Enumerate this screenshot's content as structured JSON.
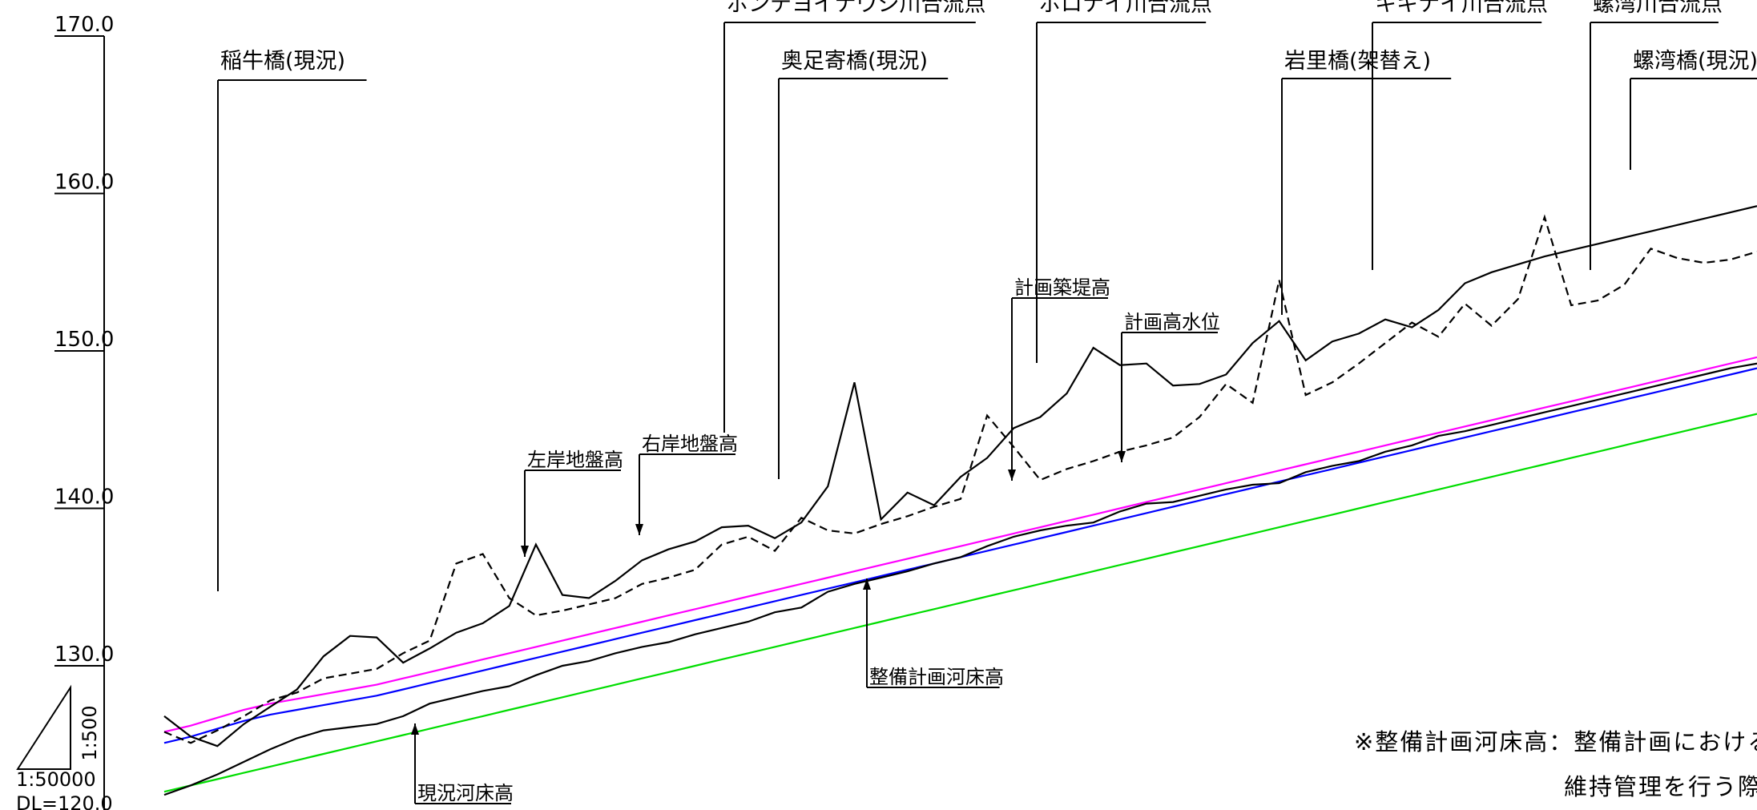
{
  "chart_data": {
    "type": "line",
    "title": "",
    "xlabel": "",
    "ylabel": "",
    "ylim": [
      121.5,
      171.0
    ],
    "y_ticks": [
      "170.0",
      "160.0",
      "150.0",
      "140.0",
      "130.0"
    ],
    "x_stations": [
      0,
      1,
      2,
      3,
      4,
      5,
      6,
      7,
      8,
      9,
      10,
      11,
      12,
      13,
      14,
      15,
      16,
      17,
      18,
      19,
      20,
      21,
      22,
      23,
      24,
      25,
      26,
      27,
      28,
      29,
      30,
      31,
      32,
      33,
      34,
      35,
      36,
      37,
      38,
      39,
      40,
      41,
      42,
      43,
      44,
      45,
      46,
      47,
      48,
      49,
      50,
      51,
      52,
      53,
      54,
      55,
      56,
      57,
      58,
      59,
      60
    ],
    "series": [
      {
        "name": "計画築堤高",
        "color": "#ff00ff",
        "style": "solid",
        "values": [
          125.8,
          126.2,
          126.7,
          127.2,
          127.6,
          127.9,
          128.2,
          128.5,
          128.8,
          129.2,
          129.6,
          130.0,
          130.4,
          130.8,
          131.2,
          131.6,
          132.0,
          132.4,
          132.8,
          133.2,
          133.6,
          134.0,
          134.4,
          134.8,
          135.2,
          135.6,
          136.0,
          136.4,
          136.8,
          137.2,
          137.6,
          138.0,
          138.4,
          138.8,
          139.2,
          139.6,
          140.0,
          140.4,
          140.8,
          141.2,
          141.6,
          142.0,
          142.4,
          142.8,
          143.2,
          143.6,
          144.0,
          144.4,
          144.8,
          145.2,
          145.6,
          146.0,
          146.4,
          146.8,
          147.2,
          147.6,
          148.0,
          148.4,
          148.8,
          149.2,
          149.6
        ]
      },
      {
        "name": "計画高水位",
        "color": "#0000ff",
        "style": "solid",
        "values": [
          125.1,
          125.5,
          126.0,
          126.5,
          126.9,
          127.2,
          127.5,
          127.8,
          128.1,
          128.5,
          128.9,
          129.3,
          129.7,
          130.1,
          130.5,
          130.9,
          131.3,
          131.7,
          132.1,
          132.5,
          132.9,
          133.3,
          133.7,
          134.1,
          134.5,
          134.9,
          135.3,
          135.7,
          136.1,
          136.5,
          136.9,
          137.3,
          137.7,
          138.1,
          138.5,
          138.9,
          139.3,
          139.7,
          140.1,
          140.5,
          140.9,
          141.3,
          141.7,
          142.1,
          142.5,
          142.9,
          143.3,
          143.7,
          144.1,
          144.5,
          144.9,
          145.3,
          145.7,
          146.1,
          146.5,
          146.9,
          147.3,
          147.7,
          148.1,
          148.5,
          148.9
        ]
      },
      {
        "name": "整備計画河床高",
        "color": "#00dd00",
        "style": "solid",
        "values": [
          122.0,
          122.4,
          122.8,
          123.2,
          123.6,
          124.0,
          124.4,
          124.8,
          125.2,
          125.6,
          126.0,
          126.4,
          126.8,
          127.2,
          127.6,
          128.0,
          128.4,
          128.8,
          129.2,
          129.6,
          130.0,
          130.4,
          130.8,
          131.2,
          131.6,
          132.0,
          132.4,
          132.8,
          133.2,
          133.6,
          134.0,
          134.4,
          134.8,
          135.2,
          135.6,
          136.0,
          136.4,
          136.8,
          137.2,
          137.6,
          138.0,
          138.4,
          138.8,
          139.2,
          139.6,
          140.0,
          140.4,
          140.8,
          141.2,
          141.6,
          142.0,
          142.4,
          142.8,
          143.2,
          143.6,
          144.0,
          144.4,
          144.8,
          145.2,
          145.6,
          146.0
        ]
      },
      {
        "name": "現況河床高",
        "color": "#000000",
        "style": "solid",
        "values": [
          121.8,
          122.4,
          123.1,
          123.9,
          124.7,
          125.4,
          125.9,
          126.1,
          126.3,
          126.8,
          127.6,
          128.0,
          128.4,
          128.7,
          129.4,
          130.0,
          130.3,
          130.8,
          131.2,
          131.5,
          132.0,
          132.4,
          132.8,
          133.4,
          133.7,
          134.7,
          135.2,
          135.6,
          136.0,
          136.5,
          136.9,
          137.6,
          138.2,
          138.6,
          138.9,
          139.1,
          139.8,
          140.3,
          140.4,
          140.8,
          141.2,
          141.5,
          141.6,
          142.3,
          142.7,
          143.0,
          143.6,
          144.0,
          144.6,
          144.9,
          145.3,
          145.7,
          146.1,
          146.5,
          146.9,
          147.3,
          147.7,
          148.1,
          148.5,
          148.9,
          149.2
        ]
      },
      {
        "name": "左岸地盤高",
        "color": "#000000",
        "style": "dashed",
        "values": [
          125.8,
          125.1,
          125.9,
          126.8,
          127.8,
          128.3,
          129.2,
          129.5,
          129.8,
          130.8,
          131.6,
          136.5,
          137.1,
          134.3,
          133.2,
          133.5,
          133.9,
          134.3,
          135.2,
          135.6,
          136.1,
          137.7,
          138.2,
          137.3,
          139.4,
          138.6,
          138.4,
          139.0,
          139.5,
          140.1,
          140.6,
          145.9,
          143.9,
          141.8,
          142.5,
          143.0,
          143.6,
          144.0,
          144.5,
          145.8,
          147.9,
          146.7,
          154.5,
          147.2,
          148.0,
          149.2,
          150.5,
          151.8,
          150.9,
          153.0,
          151.6,
          153.3,
          158.5,
          152.9,
          153.2,
          154.2,
          156.5,
          155.9,
          155.6,
          155.8,
          156.3
        ]
      },
      {
        "name": "右岸地盤高",
        "color": "#000000",
        "style": "solid",
        "values": [
          126.8,
          125.5,
          124.9,
          126.3,
          127.4,
          128.5,
          130.6,
          131.9,
          131.8,
          130.2,
          131.1,
          132.1,
          132.7,
          133.8,
          137.7,
          134.5,
          134.3,
          135.4,
          136.7,
          137.4,
          137.9,
          138.8,
          138.9,
          138.1,
          139.1,
          141.4,
          148.0,
          139.3,
          141.0,
          140.2,
          142.0,
          143.2,
          145.1,
          145.8,
          147.3,
          150.2,
          149.1,
          149.2,
          147.8,
          147.9,
          148.5,
          150.5,
          151.9,
          149.4,
          150.6,
          151.1,
          152.0,
          151.5,
          152.6,
          154.3,
          155.0,
          155.5,
          156.0,
          156.4,
          156.8,
          157.2,
          157.6,
          158.0,
          158.4,
          158.8,
          159.2
        ]
      }
    ],
    "annotations": [
      "稲牛橋(現況)",
      "ポンテヨイナウシ川合流点",
      "奥足寄橋(現況)",
      "ポロナイ川合流点",
      "岩里橋(架替え)",
      "キキナイ川合流点",
      "螺湾川合流点",
      "螺湾橋(現況)",
      "計画築堤高",
      "計画高水位",
      "左岸地盤高",
      "右岸地盤高",
      "整備計画河床高",
      "現況河床高"
    ],
    "grid": false,
    "legend": "none"
  },
  "scale": {
    "vertical": "1:500",
    "horizontal": "1:50000",
    "datum": "DL=120.0"
  },
  "note": {
    "line1": "※整備計画河床高：整備計画における河",
    "line2": "維持管理を行う際の"
  }
}
